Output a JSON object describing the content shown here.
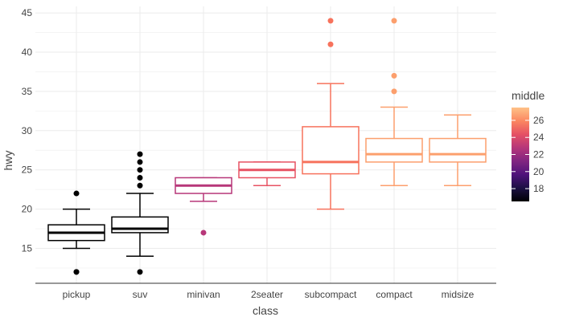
{
  "chart_data": {
    "type": "boxplot",
    "xlabel": "class",
    "ylabel": "hwy",
    "ylim": [
      11,
      45.5
    ],
    "y_ticks": [
      15,
      20,
      25,
      30,
      35,
      40,
      45
    ],
    "grid": true,
    "categories": [
      "pickup",
      "suv",
      "minivan",
      "2seater",
      "subcompact",
      "compact",
      "midsize"
    ],
    "boxes": [
      {
        "category": "pickup",
        "lower_whisker": 15,
        "q1": 16,
        "median": 17,
        "q3": 18,
        "upper_whisker": 20,
        "outliers": [
          12,
          12,
          22
        ],
        "middle": 17,
        "color": "#000000"
      },
      {
        "category": "suv",
        "lower_whisker": 14,
        "q1": 17,
        "median": 17.5,
        "q3": 19,
        "upper_whisker": 22,
        "outliers": [
          12,
          23,
          24,
          25,
          26,
          27
        ],
        "middle": 17.5,
        "color": "#000000"
      },
      {
        "category": "minivan",
        "lower_whisker": 21,
        "q1": 22,
        "median": 23,
        "q3": 24,
        "upper_whisker": 24,
        "outliers": [
          17
        ],
        "middle": 23,
        "color": "#b73779"
      },
      {
        "category": "2seater",
        "lower_whisker": 23,
        "q1": 24,
        "median": 25,
        "q3": 26,
        "upper_whisker": 26,
        "outliers": [],
        "middle": 25,
        "color": "#e75263"
      },
      {
        "category": "subcompact",
        "lower_whisker": 20,
        "q1": 24.5,
        "median": 26,
        "q3": 30.5,
        "upper_whisker": 36,
        "outliers": [
          41,
          44
        ],
        "middle": 26,
        "color": "#f7725c"
      },
      {
        "category": "compact",
        "lower_whisker": 23,
        "q1": 26,
        "median": 27,
        "q3": 29,
        "upper_whisker": 33,
        "outliers": [
          35,
          37,
          44
        ],
        "middle": 27,
        "color": "#fc9f6d"
      },
      {
        "category": "midsize",
        "lower_whisker": 23,
        "q1": 26,
        "median": 27,
        "q3": 29,
        "upper_whisker": 32,
        "outliers": [],
        "middle": 27,
        "color": "#fc9f6d"
      }
    ],
    "legend": {
      "title": "middle",
      "placement": "right",
      "range": [
        16.5,
        27.5
      ],
      "ticks": [
        18,
        20,
        22,
        24,
        26
      ],
      "colors": [
        "#000004",
        "#1c1044",
        "#4f127b",
        "#812581",
        "#b5367a",
        "#e55064",
        "#fb8761",
        "#fec287"
      ]
    }
  }
}
